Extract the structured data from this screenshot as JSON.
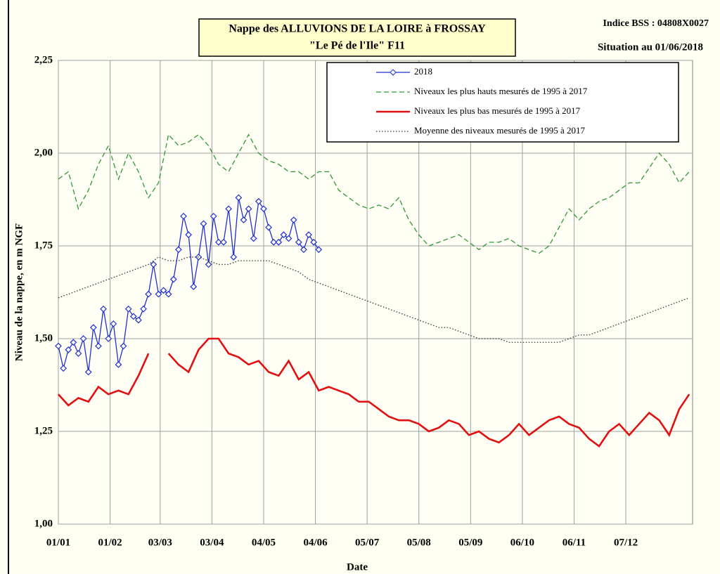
{
  "chart_data": {
    "type": "line",
    "title": "Nappe des ALLUVIONS DE LA LOIRE à FROSSAY",
    "subtitle": "\"Le Pé de l'Ile\" F11",
    "annotations": [
      "Indice BSS : 04808X0027",
      "Situation au 01/06/2018"
    ],
    "x_label": "Date",
    "y_label": "Niveau de la nappe, en m NGF",
    "xlim": [
      0,
      380
    ],
    "xticks": [
      {
        "value": 0,
        "label": "01/01"
      },
      {
        "value": 31,
        "label": "01/02"
      },
      {
        "value": 61,
        "label": "03/03"
      },
      {
        "value": 92,
        "label": "03/04"
      },
      {
        "value": 123,
        "label": "04/05"
      },
      {
        "value": 154,
        "label": "04/06"
      },
      {
        "value": 185,
        "label": "05/07"
      },
      {
        "value": 216,
        "label": "05/08"
      },
      {
        "value": 247,
        "label": "05/09"
      },
      {
        "value": 278,
        "label": "06/10"
      },
      {
        "value": 309,
        "label": "06/11"
      },
      {
        "value": 340,
        "label": "07/12"
      }
    ],
    "ylim": [
      1,
      2.25
    ],
    "yticks": [
      {
        "value": 1,
        "label": "1,00"
      },
      {
        "value": 1.25,
        "label": "1,25"
      },
      {
        "value": 1.5,
        "label": "1,50"
      },
      {
        "value": 1.75,
        "label": "1,75"
      },
      {
        "value": 2,
        "label": "2,00"
      },
      {
        "value": 2.25,
        "label": "2,25"
      }
    ],
    "grid": true,
    "legend": "top-right",
    "x": [
      0,
      6,
      12,
      18,
      24,
      30,
      36,
      42,
      48,
      54,
      60,
      66,
      72,
      78,
      84,
      90,
      96,
      102,
      108,
      114,
      120,
      126,
      132,
      138,
      144,
      150,
      156,
      162,
      168,
      174,
      180,
      186,
      192,
      198,
      204,
      210,
      216,
      222,
      228,
      234,
      240,
      246,
      252,
      258,
      264,
      270,
      276,
      282,
      288,
      294,
      300,
      306,
      312,
      318,
      324,
      330,
      336,
      342,
      348,
      354,
      360,
      366,
      372,
      378
    ],
    "series": [
      {
        "name": "2018",
        "color": "#1f2fd0",
        "style": "solid",
        "marker": "diamond",
        "x": [
          0,
          3,
          6,
          9,
          12,
          15,
          18,
          21,
          24,
          27,
          30,
          33,
          36,
          39,
          42,
          45,
          48,
          51,
          54,
          57,
          60,
          63,
          66,
          69,
          72,
          75,
          78,
          81,
          84,
          87,
          90,
          93,
          96,
          99,
          102,
          105,
          108,
          111,
          114,
          117,
          120,
          123,
          126,
          129,
          132,
          135,
          138,
          141,
          144,
          147,
          150,
          153,
          156
        ],
        "values": [
          1.48,
          1.42,
          1.47,
          1.49,
          1.46,
          1.5,
          1.41,
          1.53,
          1.48,
          1.58,
          1.5,
          1.54,
          1.43,
          1.48,
          1.58,
          1.56,
          1.55,
          1.58,
          1.62,
          1.7,
          1.62,
          1.63,
          1.62,
          1.66,
          1.74,
          1.83,
          1.78,
          1.64,
          1.72,
          1.81,
          1.7,
          1.83,
          1.76,
          1.76,
          1.85,
          1.72,
          1.88,
          1.82,
          1.85,
          1.77,
          1.87,
          1.85,
          1.8,
          1.76,
          1.76,
          1.78,
          1.77,
          1.82,
          1.76,
          1.74,
          1.78,
          1.76,
          1.74
        ]
      },
      {
        "name": "Niveaux les plus hauts mesurés de 1995 à 2017",
        "color": "#2e9a2e",
        "style": "dashed",
        "values": [
          1.93,
          1.95,
          1.85,
          1.9,
          1.97,
          2.02,
          1.93,
          2,
          1.95,
          1.88,
          1.92,
          2.05,
          2.02,
          2.03,
          2.05,
          2.02,
          1.97,
          1.95,
          2,
          2.05,
          2,
          1.98,
          1.97,
          1.95,
          1.95,
          1.93,
          1.95,
          1.95,
          1.9,
          1.88,
          1.86,
          1.85,
          1.86,
          1.85,
          1.88,
          1.82,
          1.78,
          1.75,
          1.76,
          1.77,
          1.78,
          1.76,
          1.74,
          1.76,
          1.76,
          1.77,
          1.75,
          1.74,
          1.73,
          1.75,
          1.8,
          1.85,
          1.82,
          1.85,
          1.87,
          1.88,
          1.9,
          1.92,
          1.92,
          1.96,
          2,
          1.97,
          1.92,
          1.95
        ]
      },
      {
        "name": "Niveaux les plus bas mesurés de 1995 à 2017",
        "color": "#e01010",
        "style": "thick",
        "values": [
          1.35,
          1.32,
          1.34,
          1.33,
          1.37,
          1.35,
          1.36,
          1.35,
          1.4,
          1.46,
          null,
          1.46,
          1.43,
          1.41,
          1.47,
          1.5,
          1.5,
          1.46,
          1.45,
          1.43,
          1.44,
          1.41,
          1.4,
          1.44,
          1.39,
          1.41,
          1.36,
          1.37,
          1.36,
          1.35,
          1.33,
          1.33,
          1.31,
          1.29,
          1.28,
          1.28,
          1.27,
          1.25,
          1.26,
          1.28,
          1.27,
          1.24,
          1.25,
          1.23,
          1.22,
          1.24,
          1.27,
          1.24,
          1.26,
          1.28,
          1.29,
          1.27,
          1.26,
          1.23,
          1.21,
          1.25,
          1.27,
          1.24,
          1.27,
          1.3,
          1.28,
          1.24,
          1.31,
          1.35
        ]
      },
      {
        "name": "Moyenne des niveaux mesurés de 1995 à 2017",
        "color": "#333333",
        "style": "dotted",
        "values": [
          1.61,
          1.62,
          1.63,
          1.64,
          1.65,
          1.66,
          1.67,
          1.68,
          1.69,
          1.7,
          1.72,
          1.71,
          1.71,
          1.72,
          1.72,
          1.71,
          1.7,
          1.7,
          1.71,
          1.71,
          1.71,
          1.71,
          1.7,
          1.69,
          1.68,
          1.66,
          1.65,
          1.64,
          1.63,
          1.62,
          1.61,
          1.6,
          1.59,
          1.58,
          1.57,
          1.56,
          1.55,
          1.54,
          1.53,
          1.53,
          1.52,
          1.51,
          1.5,
          1.5,
          1.5,
          1.49,
          1.49,
          1.49,
          1.49,
          1.49,
          1.49,
          1.5,
          1.51,
          1.51,
          1.52,
          1.53,
          1.54,
          1.55,
          1.56,
          1.57,
          1.58,
          1.59,
          1.6,
          1.61
        ]
      }
    ]
  }
}
